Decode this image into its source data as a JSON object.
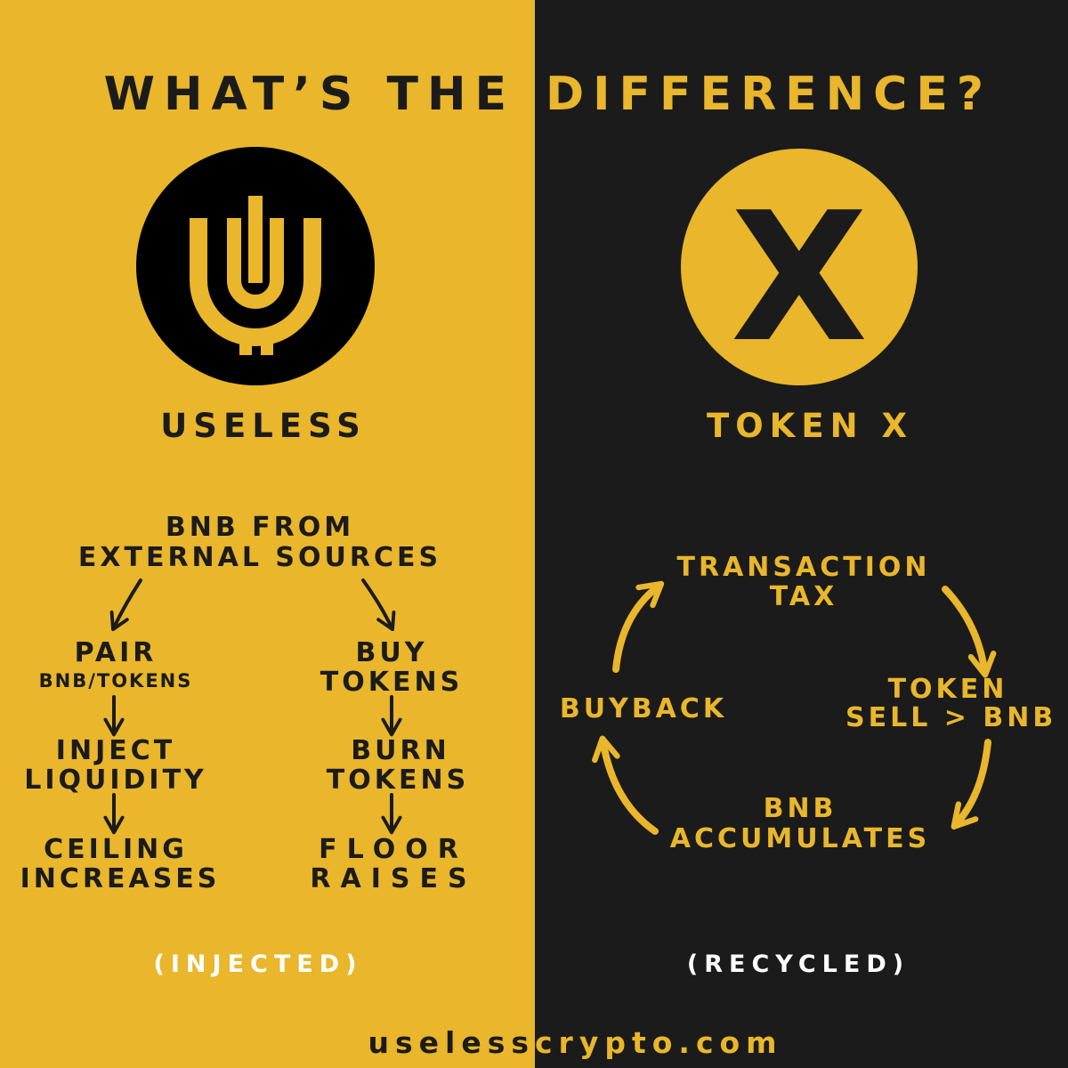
{
  "title": {
    "part_left": "WHAT’S THE",
    "part_right": "DIFFERENCE?"
  },
  "colors": {
    "gold": "#e9b62c",
    "dark": "#1b1b1b",
    "white": "#ffffff"
  },
  "left": {
    "logo_icon": "useless-u-logo-icon",
    "name": "USELESS",
    "source_line1": "BNB FROM",
    "source_line2": "EXTERNAL SOURCES",
    "branch_a": {
      "step1_line1": "PAIR",
      "step1_line2": "BNB/TOKENS",
      "step2_line1": "INJECT",
      "step2_line2": "LIQUIDITY",
      "step3_line1": "CEILING",
      "step3_line2": "INCREASES"
    },
    "branch_b": {
      "step1_line1": "BUY",
      "step1_line2": "TOKENS",
      "step2_line1": "BURN",
      "step2_line2": "TOKENS",
      "step3_line1": "FLOOR",
      "step3_line2": "RAISES"
    },
    "tag": "(INJECTED)"
  },
  "right": {
    "logo_icon": "x-logo-icon",
    "logo_letter": "X",
    "name": "TOKEN X",
    "cycle": {
      "node1_line1": "TRANSACTION",
      "node1_line2": "TAX",
      "node2_line1": "TOKEN",
      "node2_line2": "SELL > BNB",
      "node3_line1": "BNB",
      "node3_line2": "ACCUMULATES",
      "node4": "BUYBACK"
    },
    "tag": "(RECYCLED)"
  },
  "footer": {
    "part_left": "useless",
    "part_right": "crypto.com"
  }
}
